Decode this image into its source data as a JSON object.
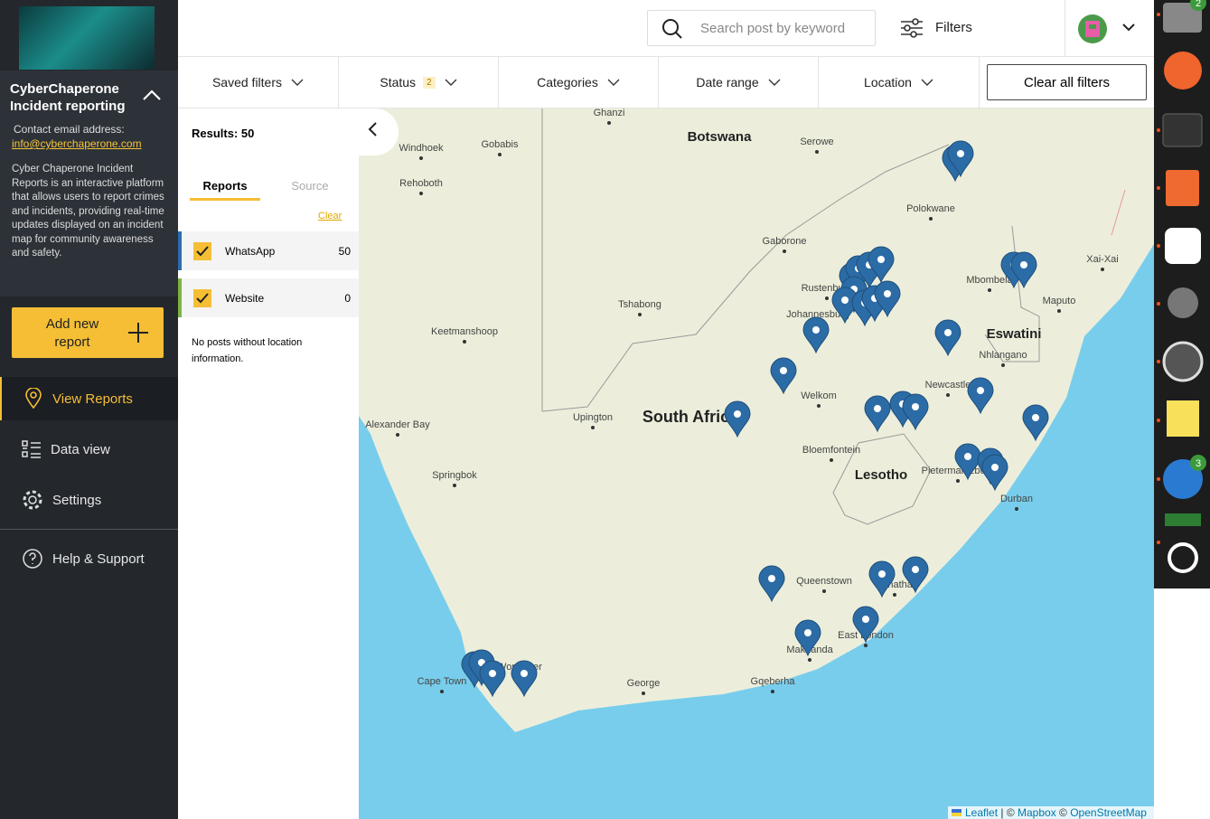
{
  "sidebar": {
    "title": "CyberChaperone Incident reporting",
    "contact_label": "Contact email address:",
    "email": "info@cyberchaperone.com",
    "description": "Cyber Chaperone Incident Reports is an interactive platform that allows users to report crimes and incidents, providing real-time updates displayed on an incident map for community awareness and safety.",
    "add_button": "Add new report",
    "nav": [
      "View Reports",
      "Data view",
      "Settings",
      "Help & Support"
    ]
  },
  "topbar": {
    "search_placeholder": "Search post by keyword",
    "filters": "Filters"
  },
  "filter_bar": {
    "items": [
      {
        "label": "Saved filters"
      },
      {
        "label": "Status",
        "count": 2
      },
      {
        "label": "Categories"
      },
      {
        "label": "Date range"
      },
      {
        "label": "Location"
      }
    ],
    "clear_all": "Clear all filters"
  },
  "results": {
    "summary": "Results: 50",
    "tabs": [
      "Reports",
      "Source"
    ],
    "clear": "Clear",
    "sources": [
      {
        "name": "WhatsApp",
        "count": 50
      },
      {
        "name": "Website",
        "count": 0
      }
    ],
    "note": "No posts without location information."
  },
  "map": {
    "labels": [
      "Ghanzi",
      "Botswana",
      "Serowe",
      "Windhoek",
      "Gobabis",
      "Rehoboth",
      "Polokwane",
      "Gaborone",
      "Rustenburg",
      "Johannesburg",
      "Tshabong",
      "Mbombela",
      "Xai-Xai",
      "Maputo",
      "Keetmanshoop",
      "Eswatini",
      "Nhlangano",
      "Welkom",
      "Newcastle",
      "South Africa",
      "Upington",
      "Alexander Bay",
      "Bloemfontein",
      "Lesotho",
      "Pietermaritzburg",
      "Durban",
      "Springbok",
      "Queenstown",
      "Mthatha",
      "Makhanda",
      "East London",
      "Cape Town",
      "Worcester",
      "George",
      "Gqeberha"
    ],
    "attribution": [
      "Leaflet",
      " | © ",
      "Mapbox",
      " © ",
      "OpenStreetMap"
    ]
  },
  "dock": {
    "badges": [
      2,
      3
    ]
  }
}
